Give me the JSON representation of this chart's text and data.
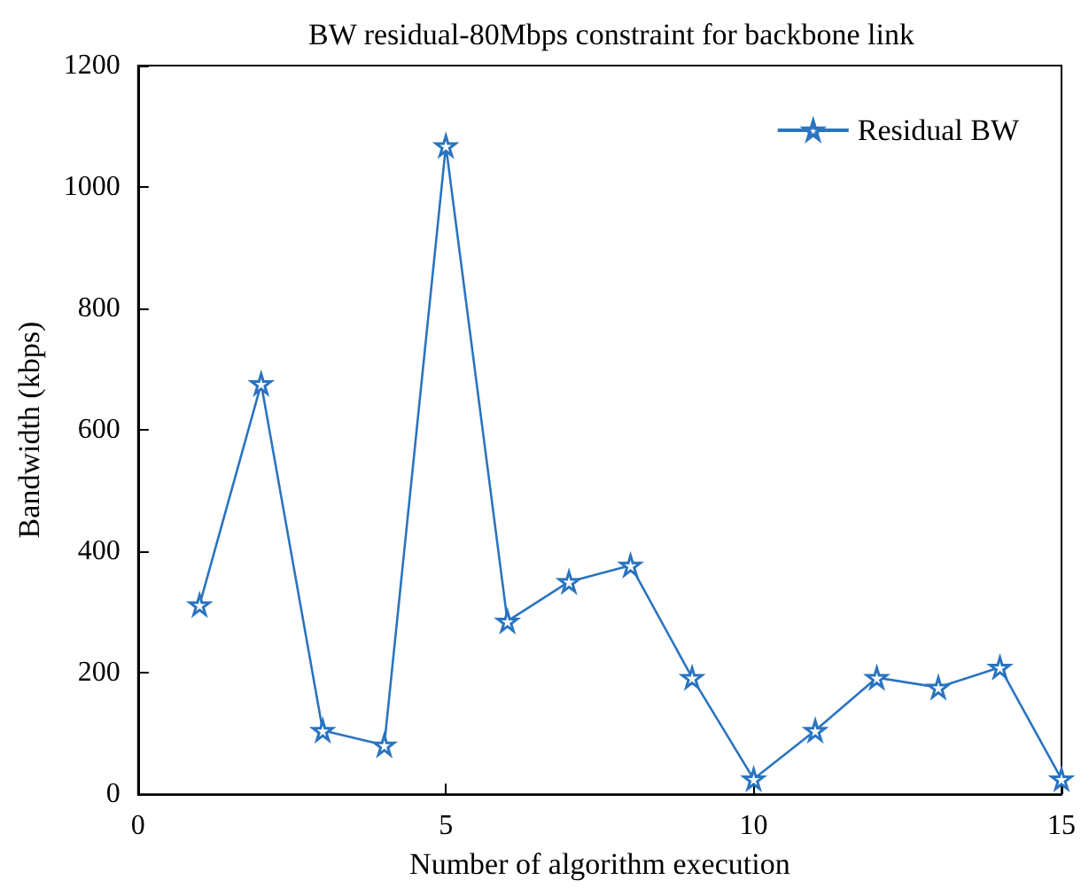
{
  "chart_data": {
    "type": "line",
    "title": "BW residual-80Mbps constraint for backbone link",
    "xlabel": "Number of algorithm execution",
    "ylabel": "Bandwidth (kbps)",
    "x": [
      1,
      2,
      3,
      4,
      5,
      6,
      7,
      8,
      9,
      10,
      11,
      12,
      13,
      14,
      15
    ],
    "series": [
      {
        "name": "Residual BW",
        "color": "#2a74c0",
        "values": [
          312,
          676,
          105,
          81,
          1068,
          285,
          350,
          377,
          192,
          25,
          105,
          192,
          176,
          209,
          25
        ]
      }
    ],
    "xlim": [
      0,
      15
    ],
    "xticks": [
      0,
      5,
      10,
      15
    ],
    "ylim": [
      0,
      1200
    ],
    "yticks": [
      0,
      200,
      400,
      600,
      800,
      1000,
      1200
    ],
    "grid": false,
    "legend": "top right",
    "marker": "star",
    "line_style": "solid"
  }
}
